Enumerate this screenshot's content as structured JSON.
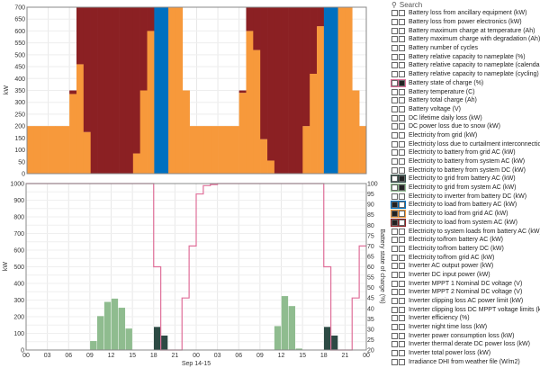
{
  "search": {
    "placeholder": "Search",
    "icon": "search-icon"
  },
  "colors": {
    "grid_to_load": "#f7993b",
    "system_to_load": "#8b2023",
    "battery_to_load": "#0070c0",
    "grid_from_system": "#8fbc8f",
    "grid_from_battery": "#2d4a44",
    "soc": "#e0709a"
  },
  "variables": [
    {
      "label": "Battery loss from ancillary equipment (kW)"
    },
    {
      "label": "Battery loss from power electronics (kW)"
    },
    {
      "label": "Battery maximum charge at temperature (Ah)"
    },
    {
      "label": "Battery maximum charge with degradation (Ah)"
    },
    {
      "label": "Battery number of cycles"
    },
    {
      "label": "Battery relative capacity to nameplate (%)"
    },
    {
      "label": "Battery relative capacity to nameplate (calendar) (%)"
    },
    {
      "label": "Battery relative capacity to nameplate (cycling) (%)"
    },
    {
      "label": "Battery state of charge (%)",
      "color": "#e0709a",
      "axis": "right"
    },
    {
      "label": "Battery temperature (C)"
    },
    {
      "label": "Battery total charge (Ah)"
    },
    {
      "label": "Battery voltage (V)"
    },
    {
      "label": "DC lifetime daily loss (kW)"
    },
    {
      "label": "DC power loss due to snow (kW)"
    },
    {
      "label": "Electricity from grid (kW)"
    },
    {
      "label": "Electricity loss due to curtailment interconnection (kW)"
    },
    {
      "label": "Electricity to battery from grid AC (kW)"
    },
    {
      "label": "Electricity to battery from system AC (kW)"
    },
    {
      "label": "Electricity to battery from system DC (kW)"
    },
    {
      "label": "Electricity to grid from battery AC (kW)",
      "color": "#2d4a44",
      "axis": "right"
    },
    {
      "label": "Electricity to grid from system AC (kW)",
      "color": "#8fbc8f",
      "axis": "right"
    },
    {
      "label": "Electricity to inverter from battery DC (kW)"
    },
    {
      "label": "Electricity to load from battery AC (kW)",
      "color": "#0070c0",
      "axis": "left"
    },
    {
      "label": "Electricity to load from grid AC (kW)",
      "color": "#f7993b",
      "axis": "left"
    },
    {
      "label": "Electricity to load from system AC (kW)",
      "color": "#8b2023",
      "axis": "left"
    },
    {
      "label": "Electricity to system loads from battery AC (kW)"
    },
    {
      "label": "Electricity to/from battery AC (kW)"
    },
    {
      "label": "Electricity to/from battery DC (kW)"
    },
    {
      "label": "Electricity to/from grid AC (kW)"
    },
    {
      "label": "Inverter AC output power (kW)"
    },
    {
      "label": "Inverter DC input power (kW)"
    },
    {
      "label": "Inverter MPPT 1 Nominal DC voltage (V)"
    },
    {
      "label": "Inverter MPPT 2 Nominal DC voltage (V)"
    },
    {
      "label": "Inverter clipping loss AC power limit (kW)"
    },
    {
      "label": "Inverter clipping loss DC MPPT voltage limits (kW)"
    },
    {
      "label": "Inverter efficiency (%)"
    },
    {
      "label": "Inverter night time loss (kW)"
    },
    {
      "label": "Inverter power consumption loss (kW)"
    },
    {
      "label": "Inverter thermal derate DC power loss (kW)"
    },
    {
      "label": "Inverter total power loss (kW)"
    },
    {
      "label": "Irradiance DHI from weather file (W/m2)"
    }
  ],
  "chart_data": [
    {
      "type": "bar",
      "stacked": true,
      "ylabel": "kW",
      "ylim": [
        0,
        700
      ],
      "yticks": [
        0,
        50,
        100,
        150,
        200,
        250,
        300,
        350,
        400,
        450,
        500,
        550,
        600,
        650,
        700
      ],
      "grid": true,
      "x": "hour 0-47 (Sep 14-15)",
      "series": [
        {
          "name": "Electricity to load from grid AC (kW)",
          "color": "#f7993b",
          "values": [
            200,
            200,
            200,
            200,
            200,
            200,
            335,
            460,
            175,
            0,
            0,
            0,
            0,
            0,
            0,
            85,
            350,
            600,
            0,
            0,
            700,
            700,
            350,
            200,
            200,
            200,
            200,
            200,
            200,
            200,
            340,
            600,
            520,
            145,
            55,
            0,
            0,
            0,
            0,
            200,
            420,
            620,
            0,
            0,
            700,
            700,
            350,
            200
          ]
        },
        {
          "name": "Electricity to load from system AC (kW)",
          "color": "#8b2023",
          "values": [
            0,
            0,
            0,
            0,
            0,
            0,
            15,
            240,
            525,
            700,
            700,
            700,
            700,
            700,
            700,
            615,
            350,
            100,
            0,
            0,
            0,
            0,
            0,
            0,
            0,
            0,
            0,
            0,
            0,
            0,
            10,
            100,
            180,
            555,
            645,
            700,
            700,
            700,
            700,
            500,
            280,
            80,
            0,
            0,
            0,
            0,
            0,
            0
          ]
        },
        {
          "name": "Electricity to load from battery AC (kW)",
          "color": "#0070c0",
          "values": [
            0,
            0,
            0,
            0,
            0,
            0,
            0,
            0,
            0,
            0,
            0,
            0,
            0,
            0,
            0,
            0,
            0,
            0,
            700,
            700,
            0,
            0,
            0,
            0,
            0,
            0,
            0,
            0,
            0,
            0,
            0,
            0,
            0,
            0,
            0,
            0,
            0,
            0,
            0,
            0,
            0,
            0,
            700,
            700,
            0,
            0,
            0,
            0
          ]
        }
      ]
    },
    {
      "type": "bar",
      "xlabel": "Sep 14-15",
      "ylabel": "kW",
      "y2label": "Battery state of charge (%)",
      "ylim": [
        0,
        1000
      ],
      "y2lim": [
        20,
        100
      ],
      "yticks": [
        0,
        100,
        200,
        300,
        400,
        500,
        600,
        700,
        800,
        900,
        1000
      ],
      "y2ticks": [
        20,
        25,
        30,
        35,
        40,
        45,
        50,
        55,
        60,
        65,
        70,
        75,
        80,
        85,
        90,
        95,
        100
      ],
      "xticks": [
        "00",
        "03",
        "06",
        "09",
        "12",
        "15",
        "18",
        "21",
        "00",
        "03",
        "06",
        "09",
        "12",
        "15",
        "18",
        "21",
        "00"
      ],
      "grid": true,
      "series": [
        {
          "name": "Electricity to grid from system AC (kW)",
          "color": "#8fbc8f",
          "values": [
            0,
            0,
            0,
            0,
            0,
            0,
            0,
            0,
            0,
            55,
            205,
            290,
            310,
            255,
            130,
            0,
            0,
            0,
            0,
            0,
            0,
            0,
            0,
            0,
            0,
            0,
            0,
            0,
            0,
            0,
            0,
            0,
            0,
            0,
            0,
            145,
            325,
            265,
            10,
            0,
            0,
            0,
            0,
            0,
            0,
            0,
            0,
            0
          ]
        },
        {
          "name": "Electricity to grid from battery AC (kW)",
          "color": "#2d4a44",
          "values": [
            0,
            0,
            0,
            0,
            0,
            0,
            0,
            0,
            0,
            0,
            0,
            0,
            0,
            0,
            0,
            0,
            0,
            0,
            140,
            88,
            0,
            0,
            0,
            0,
            0,
            0,
            0,
            0,
            0,
            0,
            0,
            0,
            0,
            0,
            0,
            0,
            0,
            0,
            0,
            0,
            0,
            0,
            140,
            88,
            0,
            0,
            0,
            0
          ]
        },
        {
          "name": "Battery state of charge (%)",
          "type": "line",
          "axis": "right",
          "color": "#e0709a",
          "values": [
            100,
            100,
            100,
            100,
            100,
            100,
            100,
            100,
            100,
            100,
            100,
            100,
            100,
            100,
            100,
            100,
            100,
            100,
            60,
            20,
            20,
            20,
            45,
            70,
            95,
            99,
            99.5,
            100,
            100,
            100,
            100,
            100,
            100,
            100,
            100,
            100,
            100,
            100,
            100,
            100,
            100,
            100,
            60,
            20,
            20,
            20,
            45,
            70
          ]
        }
      ]
    }
  ]
}
